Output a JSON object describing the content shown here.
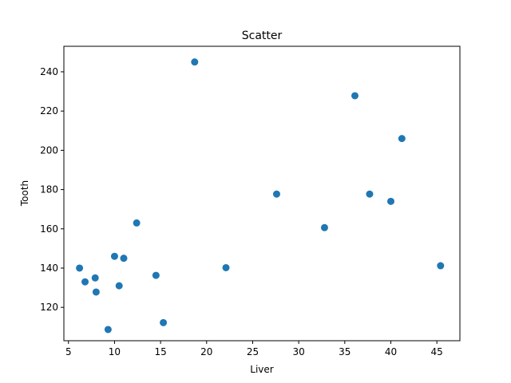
{
  "chart_data": {
    "type": "scatter",
    "title": "Scatter",
    "xlabel": "Liver",
    "ylabel": "Tooth",
    "xlim": [
      4.5,
      47.5
    ],
    "ylim": [
      103,
      253
    ],
    "xticks": [
      5,
      10,
      15,
      20,
      25,
      30,
      35,
      40,
      45
    ],
    "yticks": [
      120,
      140,
      160,
      180,
      200,
      220,
      240
    ],
    "grid": false,
    "color": "#1f77b4",
    "points": [
      {
        "x": 18.7,
        "y": 245.0
      },
      {
        "x": 36.1,
        "y": 227.8
      },
      {
        "x": 41.2,
        "y": 206.0
      },
      {
        "x": 27.6,
        "y": 177.7
      },
      {
        "x": 37.7,
        "y": 177.7
      },
      {
        "x": 40.0,
        "y": 174.0
      },
      {
        "x": 32.8,
        "y": 160.6
      },
      {
        "x": 12.4,
        "y": 163.0
      },
      {
        "x": 10.0,
        "y": 146.0
      },
      {
        "x": 11.0,
        "y": 145.0
      },
      {
        "x": 6.2,
        "y": 140.0
      },
      {
        "x": 22.1,
        "y": 140.2
      },
      {
        "x": 45.4,
        "y": 141.2
      },
      {
        "x": 14.5,
        "y": 136.3
      },
      {
        "x": 6.8,
        "y": 133.0
      },
      {
        "x": 7.9,
        "y": 135.0
      },
      {
        "x": 10.5,
        "y": 131.0
      },
      {
        "x": 8.0,
        "y": 127.8
      },
      {
        "x": 15.3,
        "y": 112.2
      },
      {
        "x": 9.3,
        "y": 108.7
      }
    ]
  }
}
